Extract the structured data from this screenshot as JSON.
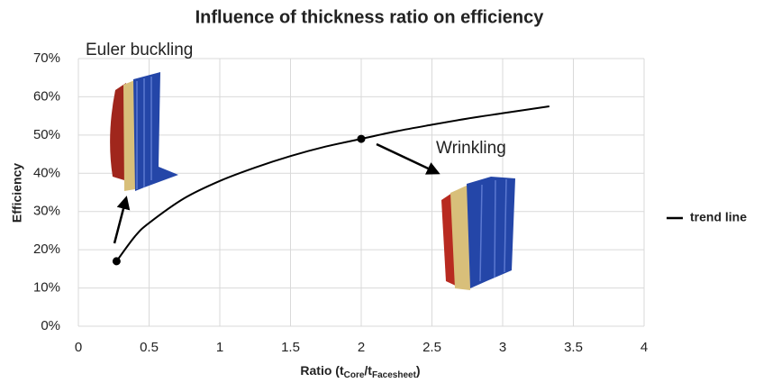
{
  "chart_data": {
    "type": "line",
    "title": "Influence of thickness ratio on efficiency",
    "y_label": "Efficiency",
    "x_label_parts": [
      "Ratio (t",
      "Core",
      "/t",
      "Facesheet",
      ")"
    ],
    "series": [
      {
        "name": "trend line",
        "color": "#000000",
        "x": [
          0.27,
          0.4,
          0.5,
          0.75,
          1,
          1.25,
          1.5,
          1.75,
          2,
          2.25,
          2.5,
          2.75,
          3,
          3.33
        ],
        "y": [
          17,
          23.5,
          27,
          33.5,
          38,
          41.5,
          44.5,
          47,
          49,
          51,
          52.7,
          54.3,
          55.7,
          57.5
        ]
      }
    ],
    "markers": {
      "x": [
        0.27,
        2
      ],
      "y": [
        17,
        49
      ]
    },
    "annotations": [
      "Euler buckling",
      "Wrinkling"
    ],
    "xlim": [
      0,
      4
    ],
    "ylim": [
      0,
      70
    ],
    "xticks": [
      0,
      0.5,
      1,
      1.5,
      2,
      2.5,
      3,
      3.5,
      4
    ],
    "yticks": [
      {
        "value": 0,
        "label": "0%"
      },
      {
        "value": 10,
        "label": "10%"
      },
      {
        "value": 20,
        "label": "20%"
      },
      {
        "value": 30,
        "label": "30%"
      },
      {
        "value": 40,
        "label": "40%"
      },
      {
        "value": 50,
        "label": "50%"
      },
      {
        "value": 60,
        "label": "60%"
      },
      {
        "value": 70,
        "label": "70%"
      }
    ],
    "grid": true
  }
}
